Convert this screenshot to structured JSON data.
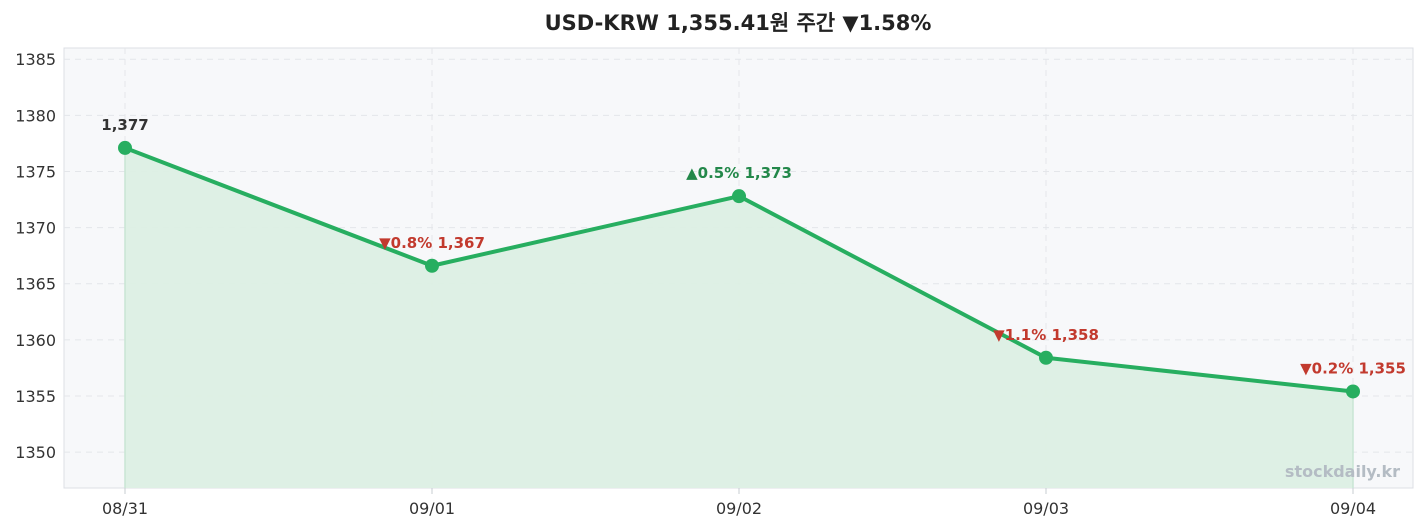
{
  "chart_data": {
    "type": "line",
    "title": "USD-KRW 1,355.41원 주간 ▼1.58%",
    "categories": [
      "08/31",
      "09/01",
      "09/02",
      "09/03",
      "09/04"
    ],
    "series": [
      {
        "values": [
          1377.1,
          1366.6,
          1372.8,
          1358.4,
          1355.4
        ]
      }
    ],
    "data_labels": [
      "1,377",
      "▼0.8% 1,367",
      "▲0.5% 1,373",
      "▼1.1% 1,358",
      "▼0.2% 1,355"
    ],
    "label_direction": [
      "none",
      "down",
      "up",
      "down",
      "down"
    ],
    "ylim": [
      1346.8,
      1386.0
    ],
    "yticks": [
      1350,
      1355,
      1360,
      1365,
      1370,
      1375,
      1380,
      1385
    ],
    "xlabel": "",
    "ylabel": "",
    "grid": true,
    "colors": {
      "line": "#27ae60",
      "area": "#dcefe4",
      "up": "#23884a",
      "down": "#c23a2e",
      "neutral": "#333333",
      "plot_bg": "#f7f8fa",
      "grid": "#e4e6ea"
    }
  },
  "watermark": "stockdaily.kr"
}
